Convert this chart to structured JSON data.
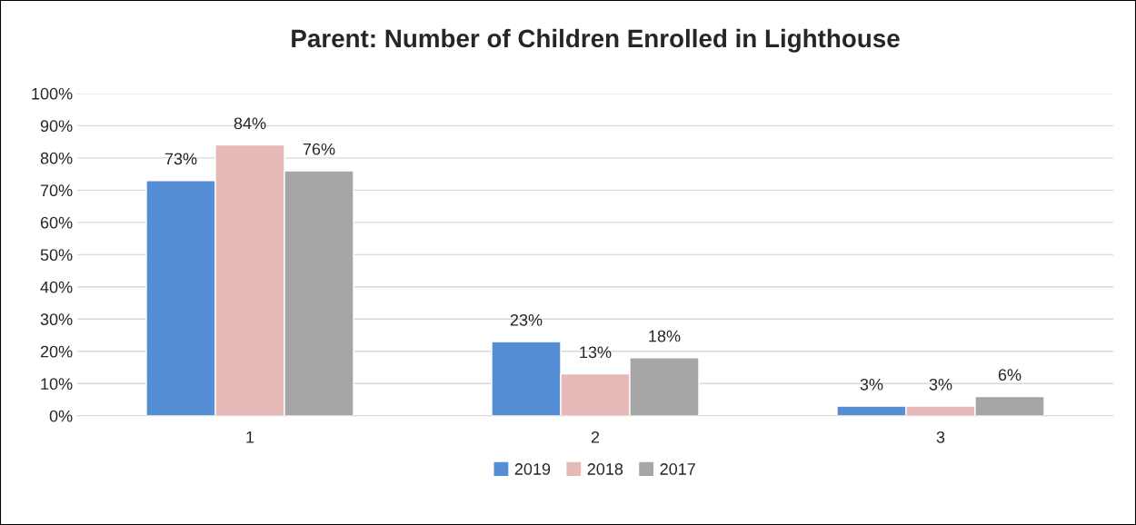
{
  "chart_data": {
    "type": "bar",
    "title": "Parent: Number of Children Enrolled in Lighthouse",
    "categories": [
      "1",
      "2",
      "3"
    ],
    "series": [
      {
        "name": "2019",
        "color": "#558ed5",
        "values": [
          73,
          23,
          3
        ]
      },
      {
        "name": "2018",
        "color": "#e6b9b8",
        "values": [
          84,
          13,
          3
        ]
      },
      {
        "name": "2017",
        "color": "#a6a6a6",
        "values": [
          76,
          18,
          6
        ]
      }
    ],
    "ylim": [
      0,
      100
    ],
    "yticks": [
      {
        "value": 0,
        "label": "0%"
      },
      {
        "value": 10,
        "label": "10%"
      },
      {
        "value": 20,
        "label": "20%"
      },
      {
        "value": 30,
        "label": "30%"
      },
      {
        "value": 40,
        "label": "40%"
      },
      {
        "value": 50,
        "label": "50%"
      },
      {
        "value": 60,
        "label": "60%"
      },
      {
        "value": 70,
        "label": "70%"
      },
      {
        "value": 80,
        "label": "80%"
      },
      {
        "value": 90,
        "label": "90%"
      },
      {
        "value": 100,
        "label": "100%"
      }
    ],
    "value_labels": [
      [
        "73%",
        "23%",
        "3%"
      ],
      [
        "84%",
        "13%",
        "3%"
      ],
      [
        "76%",
        "18%",
        "6%"
      ]
    ],
    "grid": "y",
    "legend": "bottom"
  }
}
